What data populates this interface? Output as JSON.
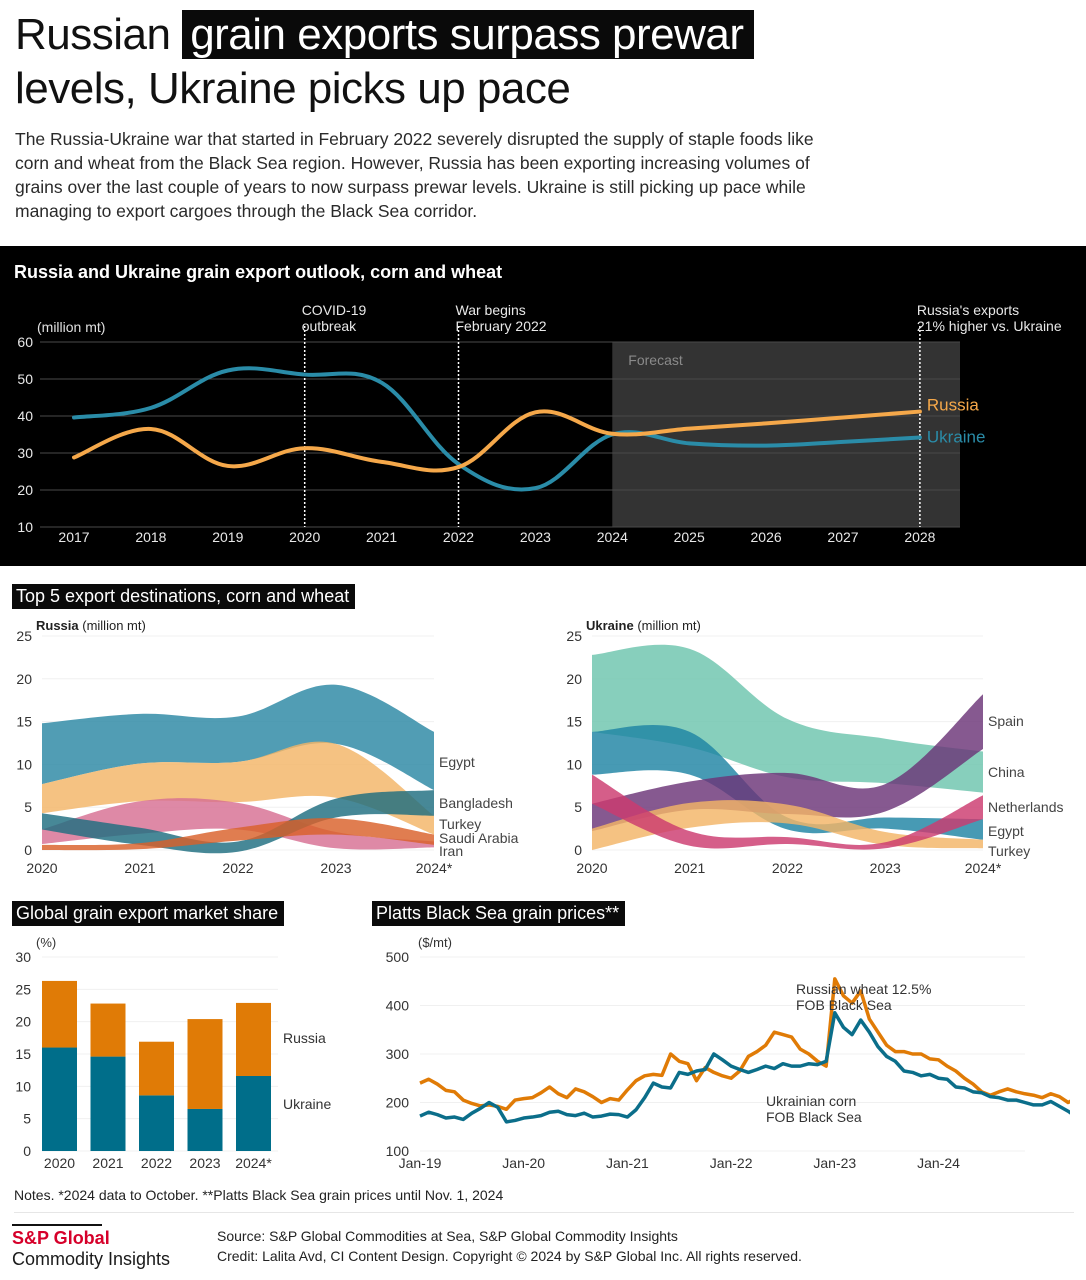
{
  "header": {
    "title_plain": "Russian ",
    "title_highlight": "grain exports surpass prewar",
    "title_line2": "levels, Ukraine picks up pace",
    "intro": "The Russia-Ukraine war that started in February 2022 severely disrupted the supply of staple foods like corn and wheat from the Black Sea region. However, Russia has been exporting increasing volumes of grains over the last couple of years to now surpass prewar levels. Ukraine is still picking up pace while managing to export cargoes through the Black Sea corridor."
  },
  "colors": {
    "russia_line": "#f5a84a",
    "ukraine_line": "#2a8ca8",
    "bar_russia": "#e07b06",
    "bar_ukraine": "#006e8a",
    "price_wheat": "#e07b06",
    "price_corn": "#0b6e8a",
    "brand_red": "#d6002a"
  },
  "sections": {
    "destinations_title": "Top 5 export destinations, corn and wheat",
    "market_share_title": "Global grain export market share",
    "prices_title": "Platts Black Sea grain prices**"
  },
  "chart_data": [
    {
      "id": "outlook",
      "type": "line",
      "title": "Russia and Ukraine grain export outlook, corn and wheat",
      "ylabel": "(million mt)",
      "ylim": [
        10,
        60
      ],
      "yticks": [
        10,
        20,
        30,
        40,
        50,
        60
      ],
      "x": [
        "2017",
        "2018",
        "2019",
        "2020",
        "2021",
        "2022",
        "2023",
        "2024",
        "2025",
        "2026",
        "2027",
        "2028"
      ],
      "series": [
        {
          "name": "Russia",
          "values": [
            28.8,
            36.5,
            26.5,
            31.3,
            27.6,
            26.2,
            41.0,
            35.2,
            36.6,
            38.0,
            39.6,
            41.2
          ]
        },
        {
          "name": "Ukraine",
          "values": [
            39.6,
            42.2,
            52.3,
            51.2,
            49.0,
            27.0,
            20.5,
            35.0,
            32.6,
            32.0,
            33.0,
            34.2
          ]
        }
      ],
      "forecast_region": {
        "label": "Forecast",
        "from": "2024",
        "to": "2028"
      },
      "annotations": [
        {
          "x": "2020",
          "text_lines": [
            "COVID-19",
            "outbreak"
          ]
        },
        {
          "x": "2022",
          "text_lines": [
            "War begins",
            "February 2022"
          ]
        },
        {
          "x": "2028",
          "text_lines": [
            "Russia's exports",
            "21% higher vs. Ukraine"
          ]
        }
      ]
    },
    {
      "id": "russia-destinations",
      "type": "area",
      "subtitle_bold": "Russia",
      "subtitle_unit": "(million mt)",
      "ylim": [
        0,
        25
      ],
      "yticks": [
        0,
        5,
        10,
        15,
        20,
        25
      ],
      "x": [
        "2020",
        "2021",
        "2022",
        "2023",
        "2024*"
      ],
      "series": [
        {
          "name": "Egypt",
          "color": "#2b88a3",
          "lower": [
            7.7,
            10.1,
            10.3,
            12.4,
            7.0
          ],
          "upper": [
            14.8,
            15.9,
            15.6,
            19.3,
            13.8
          ]
        },
        {
          "name": "Turkey",
          "color": "#f3b467",
          "lower": [
            4.3,
            5.7,
            5.6,
            6.1,
            1.8
          ],
          "upper": [
            7.7,
            10.1,
            10.3,
            12.4,
            4.0
          ]
        },
        {
          "name": "Iran",
          "color": "#d76f93",
          "lower": [
            0.7,
            1.9,
            2.4,
            0.2,
            0.3
          ],
          "upper": [
            2.4,
            5.7,
            5.5,
            2.1,
            1.0
          ]
        },
        {
          "name": "Bangladesh",
          "color": "#1e6e80",
          "lower": [
            2.4,
            0.6,
            -0.2,
            3.8,
            4.0
          ],
          "upper": [
            4.3,
            2.6,
            1.0,
            6.0,
            7.0
          ]
        },
        {
          "name": "Saudi Arabia",
          "color": "#d9602a",
          "lower": [
            0.0,
            0.1,
            1.1,
            1.8,
            0.6
          ],
          "upper": [
            0.6,
            0.8,
            2.6,
            3.7,
            1.8
          ]
        }
      ],
      "labels": [
        "Egypt",
        "Bangladesh",
        "Turkey",
        "Saudi Arabia",
        "Iran"
      ]
    },
    {
      "id": "ukraine-destinations",
      "type": "area",
      "subtitle_bold": "Ukraine",
      "subtitle_unit": "(million mt)",
      "ylim": [
        0,
        25
      ],
      "yticks": [
        0,
        5,
        10,
        15,
        20,
        25
      ],
      "x": [
        "2020",
        "2021",
        "2022",
        "2023",
        "2024*"
      ],
      "series": [
        {
          "name": "China",
          "color": "#6cc4ad",
          "lower": [
            13.8,
            12.0,
            8.5,
            7.8,
            6.7
          ],
          "upper": [
            22.8,
            23.5,
            15.3,
            13.0,
            11.5
          ]
        },
        {
          "name": "Egypt",
          "color": "#1e84a3",
          "lower": [
            8.8,
            8.8,
            2.4,
            2.5,
            1.2
          ],
          "upper": [
            13.8,
            13.8,
            3.8,
            3.8,
            3.6
          ]
        },
        {
          "name": "Spain",
          "color": "#6b3577",
          "lower": [
            2.2,
            4.7,
            4.2,
            4.5,
            11.8
          ],
          "upper": [
            5.4,
            8.0,
            9.0,
            7.7,
            18.2
          ]
        },
        {
          "name": "Turkey",
          "color": "#f3b467",
          "lower": [
            0.0,
            2.6,
            3.1,
            0.6,
            0.2
          ],
          "upper": [
            2.5,
            5.5,
            5.3,
            2.1,
            1.2
          ]
        },
        {
          "name": "Netherlands",
          "color": "#cc3a6f",
          "lower": [
            5.4,
            0.5,
            0.7,
            0.2,
            3.6
          ],
          "upper": [
            8.8,
            2.2,
            1.5,
            0.9,
            6.4
          ]
        }
      ],
      "labels": [
        "Spain",
        "China",
        "Netherlands",
        "Egypt",
        "Turkey"
      ]
    },
    {
      "id": "market-share",
      "type": "bar",
      "stacked": true,
      "ylabel": "(%)",
      "ylim": [
        0,
        30
      ],
      "yticks": [
        0,
        5,
        10,
        15,
        20,
        25,
        30
      ],
      "categories": [
        "2020",
        "2021",
        "2022",
        "2023",
        "2024*"
      ],
      "series": [
        {
          "name": "Ukraine",
          "values": [
            16.0,
            14.6,
            8.6,
            6.5,
            11.6
          ]
        },
        {
          "name": "Russia",
          "values": [
            10.3,
            8.2,
            8.3,
            13.9,
            11.3
          ]
        }
      ]
    },
    {
      "id": "prices",
      "type": "line",
      "ylabel": "($/mt)",
      "ylim": [
        100,
        500
      ],
      "yticks": [
        100,
        200,
        300,
        400,
        500
      ],
      "xticks": [
        "Jan-19",
        "Jan-20",
        "Jan-21",
        "Jan-22",
        "Jan-23",
        "Jan-24"
      ],
      "x_start": "Jan-19",
      "x_step": "month",
      "series": [
        {
          "name": "Russian wheat 12.5% FOB Black Sea",
          "label_lines": [
            "Russian wheat 12.5%",
            "FOB Black Sea"
          ],
          "values": [
            240,
            248,
            238,
            225,
            222,
            205,
            198,
            193,
            195,
            192,
            186,
            205,
            208,
            210,
            220,
            232,
            218,
            210,
            228,
            222,
            212,
            200,
            208,
            205,
            226,
            245,
            255,
            258,
            256,
            300,
            285,
            280,
            245,
            272,
            262,
            255,
            250,
            265,
            295,
            305,
            318,
            345,
            340,
            335,
            310,
            300,
            285,
            275,
            455,
            420,
            405,
            430,
            372,
            345,
            318,
            305,
            305,
            300,
            300,
            290,
            288,
            275,
            265,
            250,
            238,
            222,
            215,
            222,
            228,
            222,
            218,
            215,
            210,
            218,
            212,
            200,
            210,
            225,
            212,
            205,
            188,
            192,
            200,
            212,
            230,
            218,
            210,
            212,
            208,
            207,
            215,
            232,
            225
          ]
        },
        {
          "name": "Ukrainian corn FOB Black Sea",
          "label_lines": [
            "Ukrainian corn",
            "FOB Black Sea"
          ],
          "values": [
            172,
            180,
            175,
            168,
            170,
            165,
            178,
            188,
            200,
            190,
            160,
            163,
            168,
            170,
            173,
            180,
            182,
            175,
            173,
            178,
            170,
            172,
            176,
            175,
            170,
            185,
            210,
            240,
            232,
            230,
            262,
            258,
            265,
            268,
            300,
            288,
            275,
            268,
            262,
            268,
            275,
            270,
            280,
            275,
            275,
            280,
            278,
            285,
            385,
            355,
            340,
            370,
            345,
            315,
            295,
            285,
            265,
            262,
            255,
            258,
            250,
            248,
            232,
            230,
            222,
            220,
            212,
            210,
            205,
            205,
            200,
            195,
            195,
            202,
            192,
            182,
            170,
            165,
            180,
            190,
            200,
            195,
            200,
            205,
            210,
            208,
            205,
            212,
            215,
            220,
            220,
            225,
            218
          ]
        }
      ]
    }
  ],
  "legend_labels": {
    "outlook_russia": "Russia",
    "outlook_ukraine": "Ukraine",
    "share_russia": "Russia",
    "share_ukraine": "Ukraine"
  },
  "footer": {
    "notes": "Notes. *2024 data to October. **Platts Black Sea grain prices until Nov. 1, 2024",
    "logo_top": "S&P Global",
    "logo_bottom": "Commodity Insights",
    "source": "Source: S&P Global Commodities at Sea, S&P Global Commodity Insights",
    "credit": "Credit: Lalita Avd, CI Content Design.  Copyright © 2024 by S&P Global Inc.  All rights reserved."
  }
}
